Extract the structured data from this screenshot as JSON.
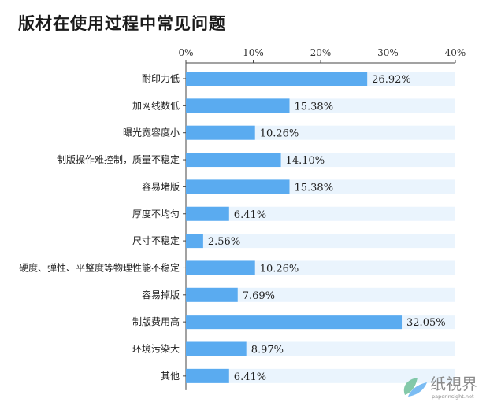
{
  "chart_data": {
    "type": "bar",
    "orientation": "horizontal",
    "title": "版材在使用过程中常见问题",
    "categories": [
      "耐印力低",
      "加网线数低",
      "曝光宽容度小",
      "制版操作难控制，质量不稳定",
      "容易堵版",
      "厚度不均匀",
      "尺寸不稳定",
      "硬度、弹性、平整度等物理性能不稳定",
      "容易掉版",
      "制版费用高",
      "环境污染大",
      "其他"
    ],
    "values": [
      26.92,
      15.38,
      10.26,
      14.1,
      15.38,
      6.41,
      2.56,
      10.26,
      7.69,
      32.05,
      8.97,
      6.41
    ],
    "value_labels": [
      "26.92%",
      "15.38%",
      "10.26%",
      "14.10%",
      "15.38%",
      "6.41%",
      "2.56%",
      "10.26%",
      "7.69%",
      "32.05%",
      "8.97%",
      "6.41%"
    ],
    "xlim": [
      0,
      40
    ],
    "x_ticks": [
      0,
      10,
      20,
      30,
      40
    ],
    "x_tick_labels": [
      "0%",
      "10%",
      "20%",
      "30%",
      "40%"
    ],
    "axis_position": "top",
    "grid": false,
    "colors": {
      "bar": "#5aabf0",
      "track": "#eaf4fd",
      "axis": "#444444"
    }
  },
  "watermark": {
    "text": "纸視界",
    "subtext": "paperinsight.net",
    "color": "#8a8a8a",
    "icon_name": "paper-leaf-logo-icon"
  }
}
